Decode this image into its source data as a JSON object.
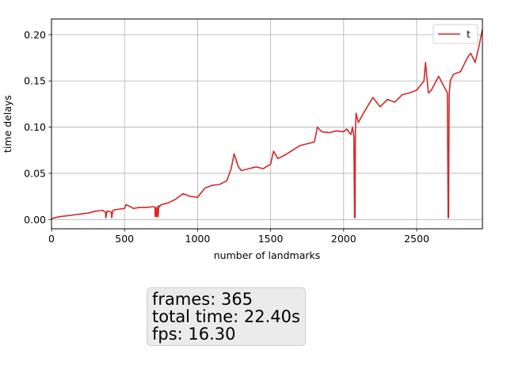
{
  "chart_data": {
    "type": "line",
    "xlabel": "number of landmarks",
    "ylabel": "time delays",
    "xlim": [
      0,
      2950
    ],
    "ylim": [
      -0.01,
      0.217
    ],
    "grid": true,
    "legend_position": "top-right",
    "x_ticks": [
      0,
      500,
      1000,
      1500,
      2000,
      2500
    ],
    "x_tick_labels": [
      "0",
      "500",
      "1000",
      "1500",
      "2000",
      "2500"
    ],
    "y_ticks": [
      0.0,
      0.05,
      0.1,
      0.15,
      0.2
    ],
    "y_tick_labels": [
      "0.00",
      "0.05",
      "0.10",
      "0.15",
      "0.20"
    ],
    "series": [
      {
        "name": "t",
        "color": "#d62728",
        "x": [
          0,
          50,
          100,
          150,
          200,
          250,
          300,
          350,
          370,
          372,
          380,
          390,
          410,
          412,
          420,
          450,
          500,
          510,
          540,
          560,
          600,
          650,
          700,
          708,
          710,
          715,
          720,
          728,
          730,
          735,
          740,
          750,
          800,
          850,
          900,
          950,
          1000,
          1050,
          1100,
          1150,
          1200,
          1230,
          1250,
          1280,
          1300,
          1350,
          1400,
          1450,
          1500,
          1520,
          1550,
          1600,
          1650,
          1700,
          1750,
          1800,
          1820,
          1850,
          1900,
          1950,
          2000,
          2020,
          2050,
          2060,
          2070,
          2075,
          2078,
          2080,
          2085,
          2100,
          2150,
          2200,
          2250,
          2300,
          2350,
          2400,
          2450,
          2500,
          2550,
          2560,
          2580,
          2600,
          2650,
          2700,
          2710,
          2715,
          2718,
          2722,
          2730,
          2750,
          2800,
          2850,
          2870,
          2900,
          2930,
          2950
        ],
        "y": [
          0.001,
          0.003,
          0.004,
          0.005,
          0.006,
          0.007,
          0.009,
          0.01,
          0.008,
          0.002,
          0.009,
          0.009,
          0.008,
          0.002,
          0.01,
          0.011,
          0.012,
          0.016,
          0.014,
          0.012,
          0.013,
          0.013,
          0.014,
          0.013,
          0.003,
          0.013,
          0.003,
          0.014,
          0.003,
          0.015,
          0.014,
          0.016,
          0.018,
          0.022,
          0.028,
          0.025,
          0.024,
          0.034,
          0.037,
          0.038,
          0.042,
          0.055,
          0.071,
          0.057,
          0.053,
          0.055,
          0.057,
          0.055,
          0.06,
          0.074,
          0.066,
          0.07,
          0.075,
          0.08,
          0.082,
          0.084,
          0.1,
          0.095,
          0.094,
          0.096,
          0.095,
          0.098,
          0.092,
          0.1,
          0.09,
          0.002,
          0.002,
          0.095,
          0.115,
          0.105,
          0.119,
          0.132,
          0.122,
          0.13,
          0.127,
          0.135,
          0.137,
          0.14,
          0.15,
          0.17,
          0.137,
          0.14,
          0.155,
          0.14,
          0.137,
          0.002,
          0.002,
          0.135,
          0.15,
          0.157,
          0.16,
          0.176,
          0.18,
          0.17,
          0.19,
          0.206
        ]
      }
    ]
  },
  "stats": {
    "frames": "frames: 365",
    "total_time": "total time: 22.40s",
    "fps": "fps: 16.30"
  }
}
